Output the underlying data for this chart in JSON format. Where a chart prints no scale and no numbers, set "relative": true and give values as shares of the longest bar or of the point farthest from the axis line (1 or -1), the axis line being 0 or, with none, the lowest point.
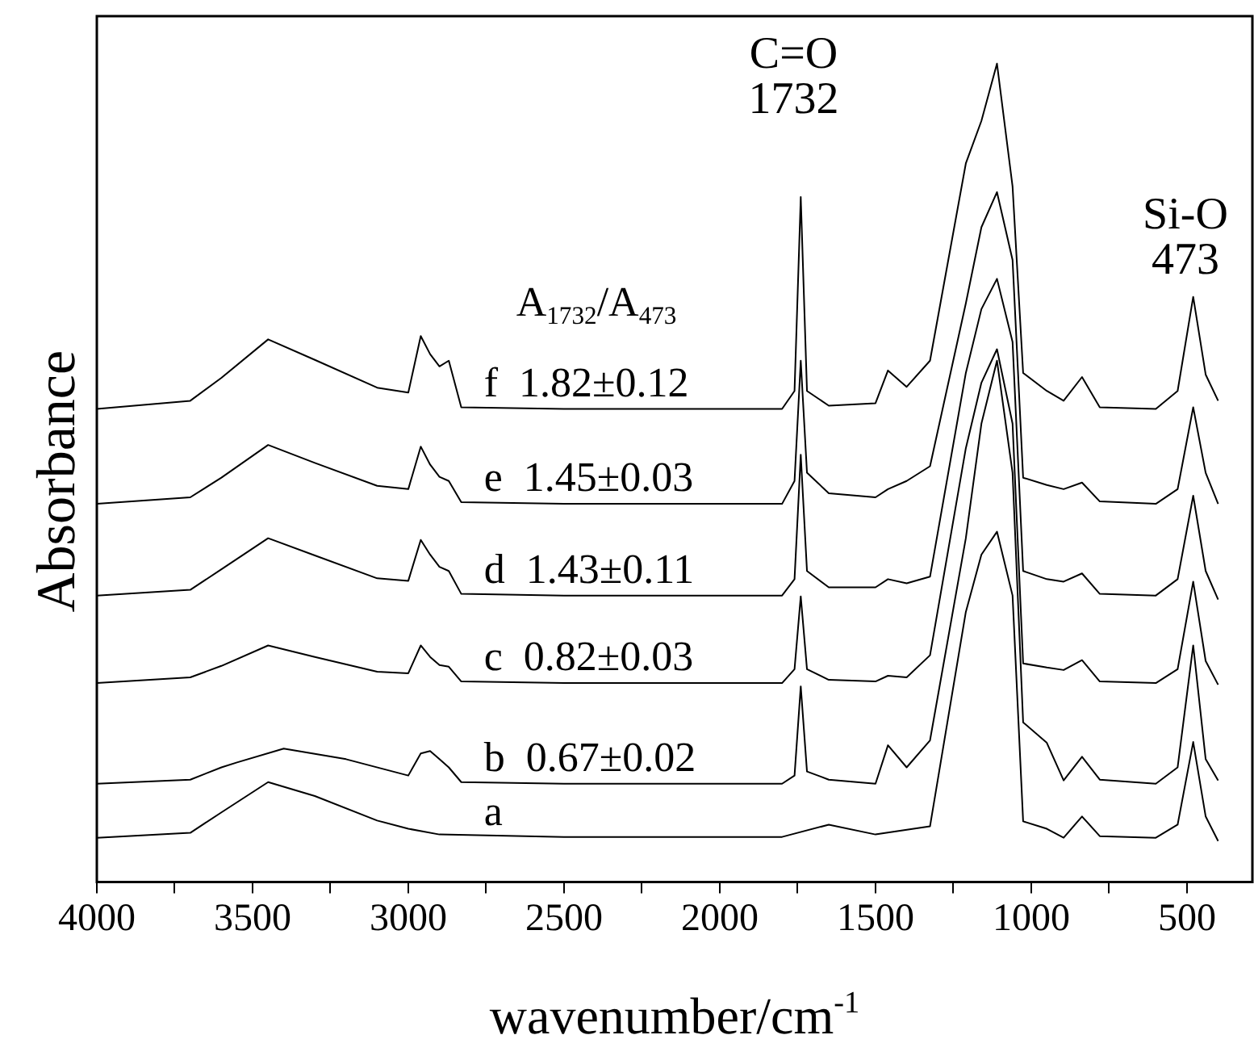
{
  "chart_data": {
    "type": "line",
    "relative": true,
    "xlabel": "wavenumber/cm$^{-1}$",
    "ylabel": "Absorbance",
    "xlim": [
      4000,
      290
    ],
    "xticks": [
      4000,
      {
        "value": 3750,
        "label": null
      },
      3500,
      {
        "value": 3250,
        "label": null
      },
      3000,
      {
        "value": 2750,
        "label": null
      },
      2500,
      {
        "value": 2250,
        "label": null
      },
      2000,
      {
        "value": 1750,
        "label": null
      },
      1500,
      {
        "value": 1250,
        "label": null
      },
      1000,
      {
        "value": 750,
        "label": null
      },
      500
    ],
    "legend": false,
    "grid": false,
    "marker": "none",
    "line_style": "solid",
    "tick_labels": "x",
    "series": [
      {
        "name": "f  1.82±0.12",
        "color": "#000000",
        "x": [
          4000,
          3700,
          3600,
          3450,
          3300,
          3100,
          3000,
          2960,
          2930,
          2900,
          2870,
          2830,
          2500,
          1800,
          1760,
          1740,
          1720,
          1650,
          1500,
          1460,
          1400,
          1325,
          1210,
          1160,
          1110,
          1060,
          1026,
          950,
          896,
          837,
          780,
          600,
          530,
          480,
          440,
          400
        ],
        "values": [
          0.578,
          0.588,
          0.616,
          0.663,
          0.638,
          0.604,
          0.598,
          0.667,
          0.645,
          0.63,
          0.637,
          0.58,
          0.578,
          0.578,
          0.6,
          0.837,
          0.6,
          0.582,
          0.585,
          0.625,
          0.605,
          0.637,
          0.878,
          0.93,
          1,
          0.85,
          0.622,
          0.6,
          0.588,
          0.617,
          0.58,
          0.578,
          0.6,
          0.715,
          0.62,
          0.588
        ]
      },
      {
        "name": "e  1.45±0.03",
        "color": "#000000",
        "x": [
          4000,
          3700,
          3600,
          3450,
          3300,
          3100,
          3000,
          2960,
          2930,
          2900,
          2870,
          2830,
          2500,
          1800,
          1760,
          1740,
          1720,
          1650,
          1500,
          1460,
          1400,
          1325,
          1210,
          1160,
          1110,
          1060,
          1026,
          950,
          896,
          837,
          780,
          600,
          530,
          480,
          440,
          400
        ],
        "values": [
          0.462,
          0.47,
          0.494,
          0.534,
          0.512,
          0.484,
          0.48,
          0.532,
          0.51,
          0.495,
          0.49,
          0.464,
          0.462,
          0.462,
          0.49,
          0.637,
          0.5,
          0.475,
          0.47,
          0.48,
          0.49,
          0.508,
          0.707,
          0.8,
          0.843,
          0.76,
          0.494,
          0.485,
          0.48,
          0.488,
          0.465,
          0.462,
          0.48,
          0.58,
          0.5,
          0.462
        ]
      },
      {
        "name": "d  1.43±0.11",
        "color": "#000000",
        "x": [
          4000,
          3700,
          3600,
          3450,
          3300,
          3100,
          3000,
          2960,
          2930,
          2900,
          2870,
          2830,
          2500,
          1800,
          1760,
          1740,
          1720,
          1650,
          1500,
          1460,
          1400,
          1325,
          1210,
          1160,
          1110,
          1060,
          1026,
          950,
          896,
          837,
          780,
          600,
          530,
          480,
          440,
          400
        ],
        "values": [
          0.35,
          0.357,
          0.382,
          0.42,
          0.399,
          0.371,
          0.368,
          0.418,
          0.4,
          0.385,
          0.38,
          0.352,
          0.35,
          0.35,
          0.37,
          0.522,
          0.38,
          0.36,
          0.36,
          0.37,
          0.365,
          0.373,
          0.622,
          0.7,
          0.737,
          0.66,
          0.38,
          0.37,
          0.367,
          0.377,
          0.352,
          0.35,
          0.37,
          0.472,
          0.38,
          0.345
        ]
      },
      {
        "name": "c  0.82±0.03",
        "color": "#000000",
        "x": [
          4000,
          3700,
          3600,
          3450,
          3300,
          3100,
          3000,
          2960,
          2930,
          2900,
          2870,
          2830,
          2500,
          1800,
          1760,
          1740,
          1720,
          1650,
          1500,
          1460,
          1400,
          1325,
          1210,
          1160,
          1110,
          1060,
          1026,
          950,
          896,
          837,
          780,
          600,
          530,
          480,
          440,
          400
        ],
        "values": [
          0.243,
          0.25,
          0.264,
          0.289,
          0.275,
          0.257,
          0.255,
          0.289,
          0.275,
          0.265,
          0.263,
          0.245,
          0.243,
          0.243,
          0.26,
          0.349,
          0.26,
          0.247,
          0.245,
          0.252,
          0.25,
          0.277,
          0.53,
          0.61,
          0.651,
          0.56,
          0.267,
          0.262,
          0.259,
          0.271,
          0.245,
          0.243,
          0.26,
          0.367,
          0.27,
          0.241
        ]
      },
      {
        "name": "b  0.67±0.02",
        "color": "#000000",
        "x": [
          4000,
          3700,
          3600,
          3550,
          3400,
          3200,
          3000,
          2960,
          2930,
          2900,
          2870,
          2830,
          2500,
          1800,
          1760,
          1740,
          1720,
          1650,
          1500,
          1460,
          1400,
          1325,
          1210,
          1160,
          1110,
          1060,
          1026,
          950,
          896,
          837,
          780,
          600,
          530,
          480,
          440,
          400
        ],
        "values": [
          0.12,
          0.125,
          0.14,
          0.146,
          0.163,
          0.15,
          0.13,
          0.157,
          0.16,
          0.15,
          0.14,
          0.122,
          0.12,
          0.12,
          0.13,
          0.239,
          0.135,
          0.125,
          0.12,
          0.167,
          0.14,
          0.173,
          0.42,
          0.56,
          0.637,
          0.5,
          0.195,
          0.17,
          0.124,
          0.153,
          0.125,
          0.12,
          0.14,
          0.289,
          0.15,
          0.124
        ]
      },
      {
        "name": "a",
        "color": "#000000",
        "x": [
          4000,
          3700,
          3600,
          3450,
          3300,
          3100,
          3000,
          2900,
          2500,
          1800,
          1650,
          1500,
          1325,
          1210,
          1160,
          1110,
          1060,
          1026,
          950,
          896,
          837,
          780,
          600,
          530,
          480,
          440,
          400
        ],
        "values": [
          0.054,
          0.06,
          0.085,
          0.122,
          0.105,
          0.075,
          0.065,
          0.058,
          0.055,
          0.055,
          0.07,
          0.058,
          0.068,
          0.33,
          0.4,
          0.428,
          0.35,
          0.074,
          0.065,
          0.054,
          0.08,
          0.056,
          0.054,
          0.07,
          0.171,
          0.08,
          0.05
        ]
      }
    ],
    "annotations": [
      "A$_{1732}$/A$_{473}$",
      "C=O\n1732",
      "Si-O\n473"
    ]
  }
}
